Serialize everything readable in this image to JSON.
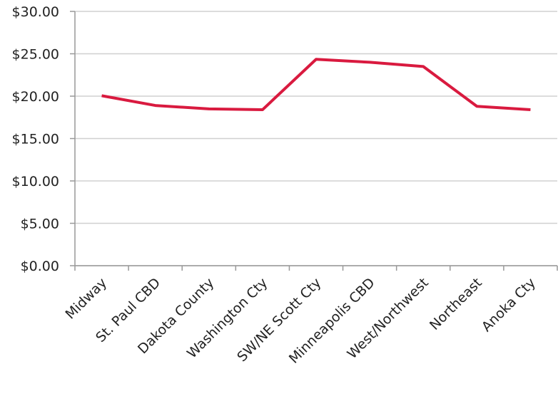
{
  "chart_data": {
    "type": "line",
    "categories": [
      "Midway",
      "St. Paul CBD",
      "Dakota County",
      "Washington Cty",
      "SW/NE Scott Cty",
      "Minneapolis CBD",
      "West/Northwest",
      "Northeast",
      "Anoka Cty"
    ],
    "series": [
      {
        "color": "#d91a3f",
        "values": [
          20.05,
          18.9,
          18.5,
          18.4,
          24.35,
          24.0,
          23.5,
          18.8,
          18.4
        ]
      }
    ],
    "ylim": [
      0,
      30
    ],
    "yticks": [
      {
        "value": 0,
        "label": "$0.00"
      },
      {
        "value": 5,
        "label": "$5.00"
      },
      {
        "value": 10,
        "label": "$10.00"
      },
      {
        "value": 15,
        "label": "$15.00"
      },
      {
        "value": 20,
        "label": "$20.00"
      },
      {
        "value": 25,
        "label": "$25.00"
      },
      {
        "value": 30,
        "label": "$30.00"
      }
    ],
    "grid": true
  }
}
